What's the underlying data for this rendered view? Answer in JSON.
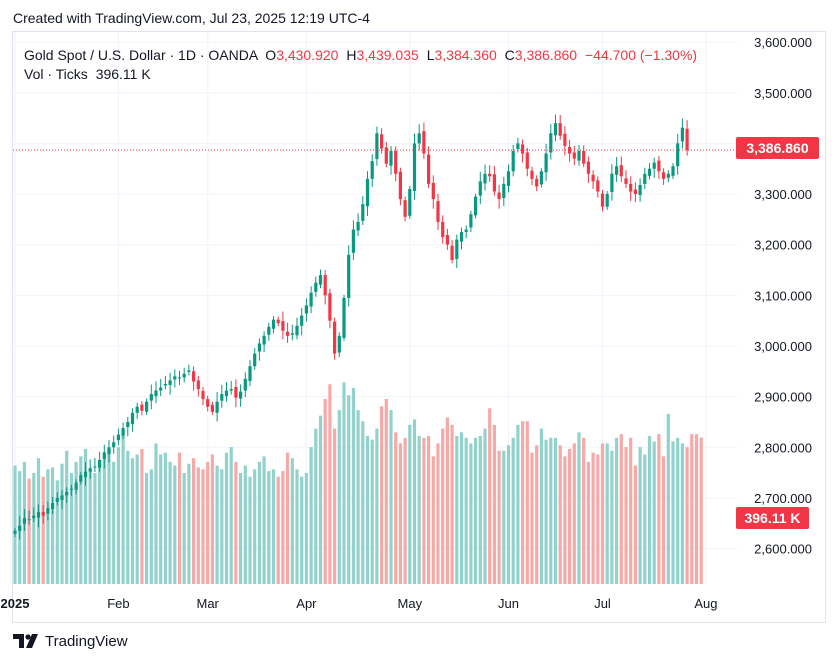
{
  "header": {
    "created_text": "Created with TradingView.com, Jul 23, 2025 12:19 UTC-4"
  },
  "legend": {
    "symbol": "Gold Spot / U.S. Dollar · 1D · OANDA",
    "o_label": "O",
    "o_value": "3,430.920",
    "h_label": "H",
    "h_value": "3,439.035",
    "l_label": "L",
    "l_value": "3,384.360",
    "c_label": "C",
    "c_value": "3,386.860",
    "change": "−44.700 (−1.30%)",
    "vol_label": "Vol · Ticks",
    "vol_value": "396.11 K"
  },
  "price_tag": "3,386.860",
  "vol_tag": "396.11 K",
  "footer": {
    "brand": "TradingView"
  },
  "colors": {
    "up": "#089981",
    "down": "#f23645",
    "vol_up": "#92d2cc",
    "vol_down": "#f7a9a7"
  },
  "chart_data": {
    "type": "candlestick",
    "title": "Gold Spot / U.S. Dollar · 1D · OANDA",
    "y_ticks": [
      "2,600.000",
      "2,700.000",
      "2,800.000",
      "2,900.000",
      "3,000.000",
      "3,100.000",
      "3,200.000",
      "3,300.000",
      "3,400.000",
      "3,500.000",
      "3,600.000"
    ],
    "y_tick_values": [
      2600,
      2700,
      2800,
      2900,
      3000,
      3100,
      3200,
      3300,
      3400,
      3500,
      3600
    ],
    "x_ticks": [
      "2025",
      "Feb",
      "Mar",
      "Apr",
      "May",
      "Jun",
      "Jul",
      "Aug"
    ],
    "x_tick_indices": [
      0,
      22,
      41,
      62,
      84,
      105,
      125,
      147
    ],
    "ylim": [
      2530,
      3620
    ],
    "last_close": 3386.86,
    "grid": true,
    "close_values": [
      2635,
      2645,
      2660,
      2658,
      2665,
      2672,
      2665,
      2680,
      2690,
      2700,
      2705,
      2712,
      2718,
      2730,
      2745,
      2752,
      2758,
      2762,
      2775,
      2790,
      2800,
      2810,
      2825,
      2838,
      2850,
      2868,
      2880,
      2872,
      2890,
      2905,
      2912,
      2918,
      2925,
      2932,
      2940,
      2938,
      2945,
      2952,
      2930,
      2915,
      2895,
      2880,
      2870,
      2890,
      2905,
      2912,
      2915,
      2898,
      2910,
      2935,
      2960,
      2985,
      3005,
      3020,
      3038,
      3052,
      3045,
      3030,
      3020,
      3025,
      3040,
      3060,
      3080,
      3105,
      3125,
      3140,
      3100,
      3050,
      2985,
      3020,
      3095,
      3180,
      3230,
      3245,
      3280,
      3330,
      3365,
      3420,
      3390,
      3360,
      3385,
      3340,
      3290,
      3255,
      3310,
      3400,
      3420,
      3380,
      3320,
      3290,
      3245,
      3215,
      3200,
      3170,
      3210,
      3225,
      3230,
      3260,
      3295,
      3325,
      3340,
      3335,
      3305,
      3290,
      3320,
      3345,
      3385,
      3400,
      3380,
      3350,
      3330,
      3315,
      3345,
      3380,
      3420,
      3440,
      3415,
      3395,
      3380,
      3370,
      3385,
      3360,
      3340,
      3325,
      3305,
      3275,
      3300,
      3340,
      3355,
      3335,
      3320,
      3305,
      3300,
      3318,
      3340,
      3350,
      3362,
      3345,
      3330,
      3340,
      3355,
      3400,
      3431,
      3386.86
    ],
    "volume_values": [
      320,
      305,
      330,
      285,
      300,
      340,
      290,
      310,
      315,
      280,
      325,
      360,
      300,
      330,
      345,
      365,
      315,
      300,
      335,
      340,
      350,
      330,
      370,
      415,
      360,
      340,
      350,
      365,
      300,
      310,
      380,
      350,
      355,
      330,
      320,
      355,
      300,
      325,
      340,
      315,
      310,
      330,
      350,
      320,
      310,
      355,
      370,
      330,
      300,
      320,
      290,
      310,
      330,
      345,
      305,
      310,
      290,
      305,
      355,
      340,
      310,
      290,
      300,
      370,
      420,
      455,
      500,
      540,
      420,
      470,
      545,
      510,
      530,
      470,
      440,
      400,
      390,
      420,
      480,
      500,
      470,
      410,
      380,
      395,
      430,
      445,
      400,
      395,
      400,
      345,
      380,
      420,
      450,
      430,
      400,
      410,
      395,
      380,
      395,
      400,
      420,
      475,
      430,
      360,
      360,
      375,
      395,
      430,
      440,
      440,
      355,
      375,
      420,
      390,
      395,
      395,
      375,
      345,
      365,
      380,
      410,
      395,
      330,
      355,
      350,
      380,
      380,
      360,
      395,
      405,
      370,
      395,
      320,
      370,
      350,
      400,
      385,
      405,
      345,
      460,
      385,
      395,
      380,
      370,
      405,
      405,
      396
    ]
  }
}
